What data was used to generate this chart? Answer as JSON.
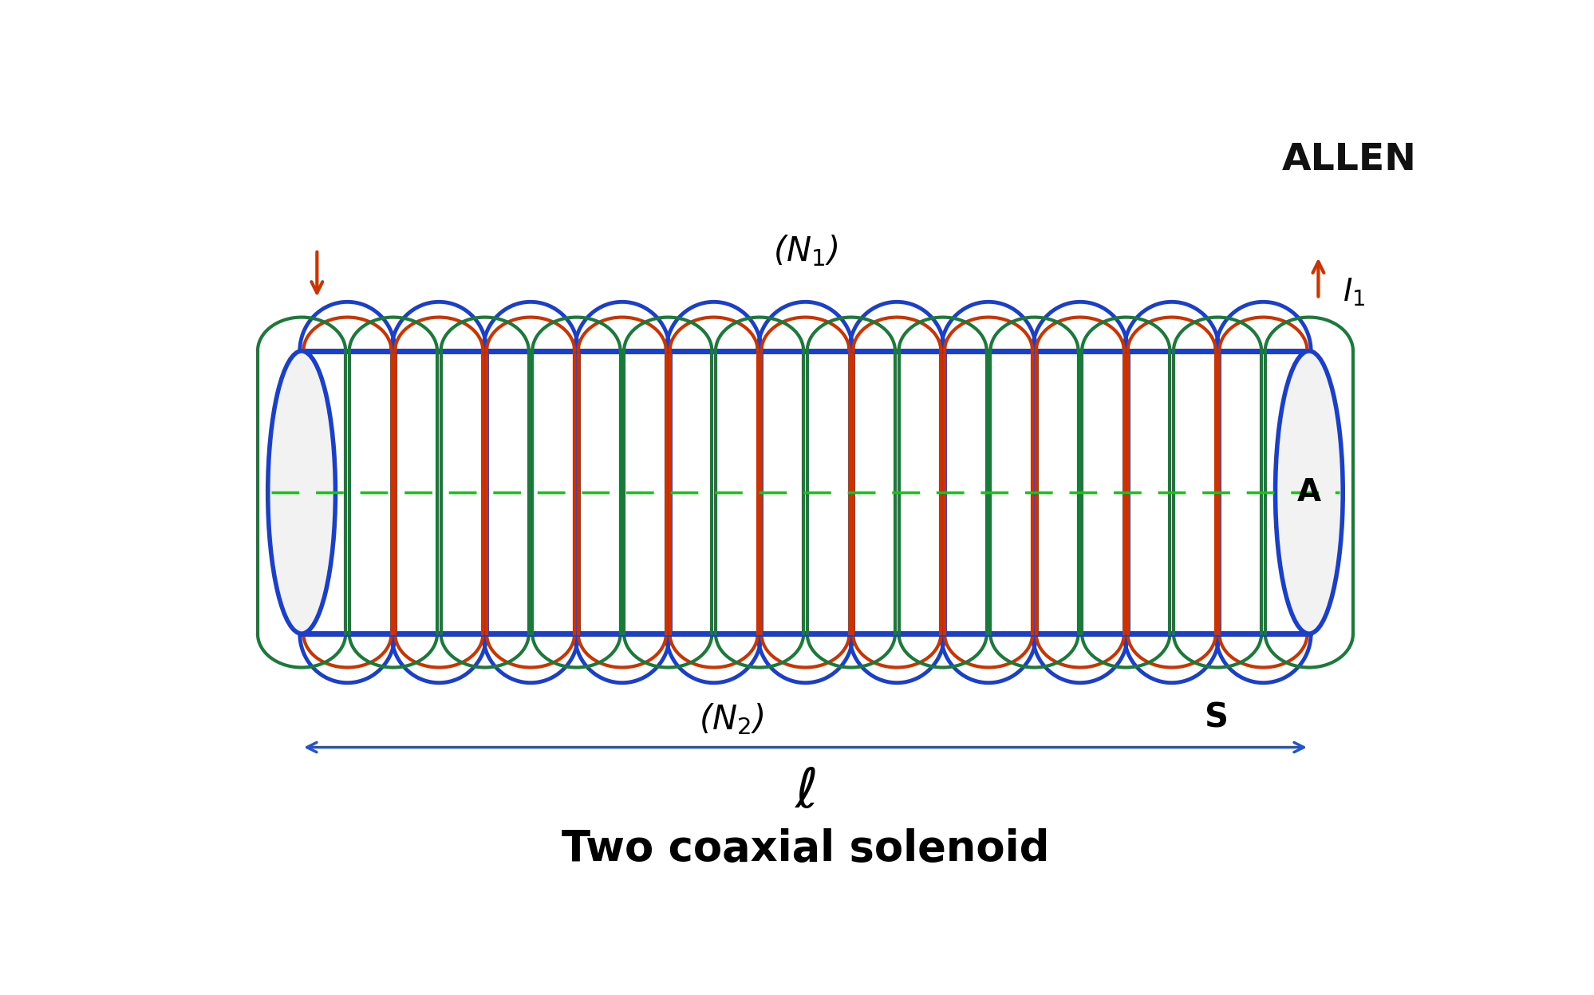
{
  "bg_color": "#ffffff",
  "title": "Two coaxial solenoid",
  "title_fontsize": 38,
  "title_fontweight": "bold",
  "allen_text": "ALLEN",
  "allen_fontsize": 34,
  "cylinder_color": "#1a3fcc",
  "cylinder_lw": 4.0,
  "outer_coil_color": "#1a3fcc",
  "outer_coil_lw": 3.5,
  "inner_coil1_color": "#cc3300",
  "inner_coil1_lw": 3.0,
  "inner_coil2_color": "#1a7a3a",
  "inner_coil2_lw": 3.0,
  "dashed_line_color": "#2ab52a",
  "axis_arrow_color": "#2255cc",
  "current_arrow_color": "#cc3300",
  "N1_label": "(N$_1$)",
  "N2_label": "(N$_2$)",
  "S_label": "S",
  "A_label": "A",
  "I1_label": "I$_1$",
  "ell_label": "$\\ell$",
  "watermark": "ALLEN",
  "n_turns": 11
}
